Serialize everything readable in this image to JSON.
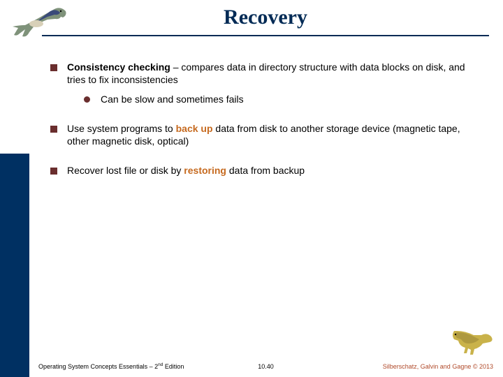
{
  "title": "Recovery",
  "colors": {
    "title": "#002a55",
    "rule": "#002a55",
    "sidebar_blue": "#003062",
    "bullet": "#6a2e2e",
    "highlight": "#c66a1f",
    "footer_right": "#b04a2a",
    "background": "#ffffff"
  },
  "fonts": {
    "title_family": "Times New Roman",
    "title_size_pt": 30,
    "title_weight": "bold",
    "body_family": "Arial",
    "body_size_pt": 14,
    "footer_size_pt": 9
  },
  "bullets": [
    {
      "runs": [
        {
          "text": "Consistency checking",
          "style": "bold"
        },
        {
          "text": " – compares data in directory structure with data blocks on disk, and tries to fix inconsistencies"
        }
      ],
      "sub": [
        {
          "runs": [
            {
              "text": "Can be slow and sometimes fails"
            }
          ]
        }
      ]
    },
    {
      "runs": [
        {
          "text": "Use system programs to "
        },
        {
          "text": "back up",
          "style": "hl"
        },
        {
          "text": " data from disk to another storage device (magnetic tape, other magnetic disk, optical)"
        }
      ]
    },
    {
      "runs": [
        {
          "text": "Recover lost file or disk by "
        },
        {
          "text": "restoring",
          "style": "hl"
        },
        {
          "text": " data from backup"
        }
      ]
    }
  ],
  "footer": {
    "left_pre": "Operating System Concepts Essentials – 2",
    "left_sup": "nd",
    "left_post": " Edition",
    "mid": "10.40",
    "right": "Silberschatz, Galvin and Gagne © 2013"
  },
  "dino_top": {
    "body": "#7f927a",
    "stripe": "#3a4a7a",
    "belly": "#d8d0b8"
  },
  "dino_bottom": {
    "body": "#c9b24a",
    "dark": "#7a6a2a"
  }
}
